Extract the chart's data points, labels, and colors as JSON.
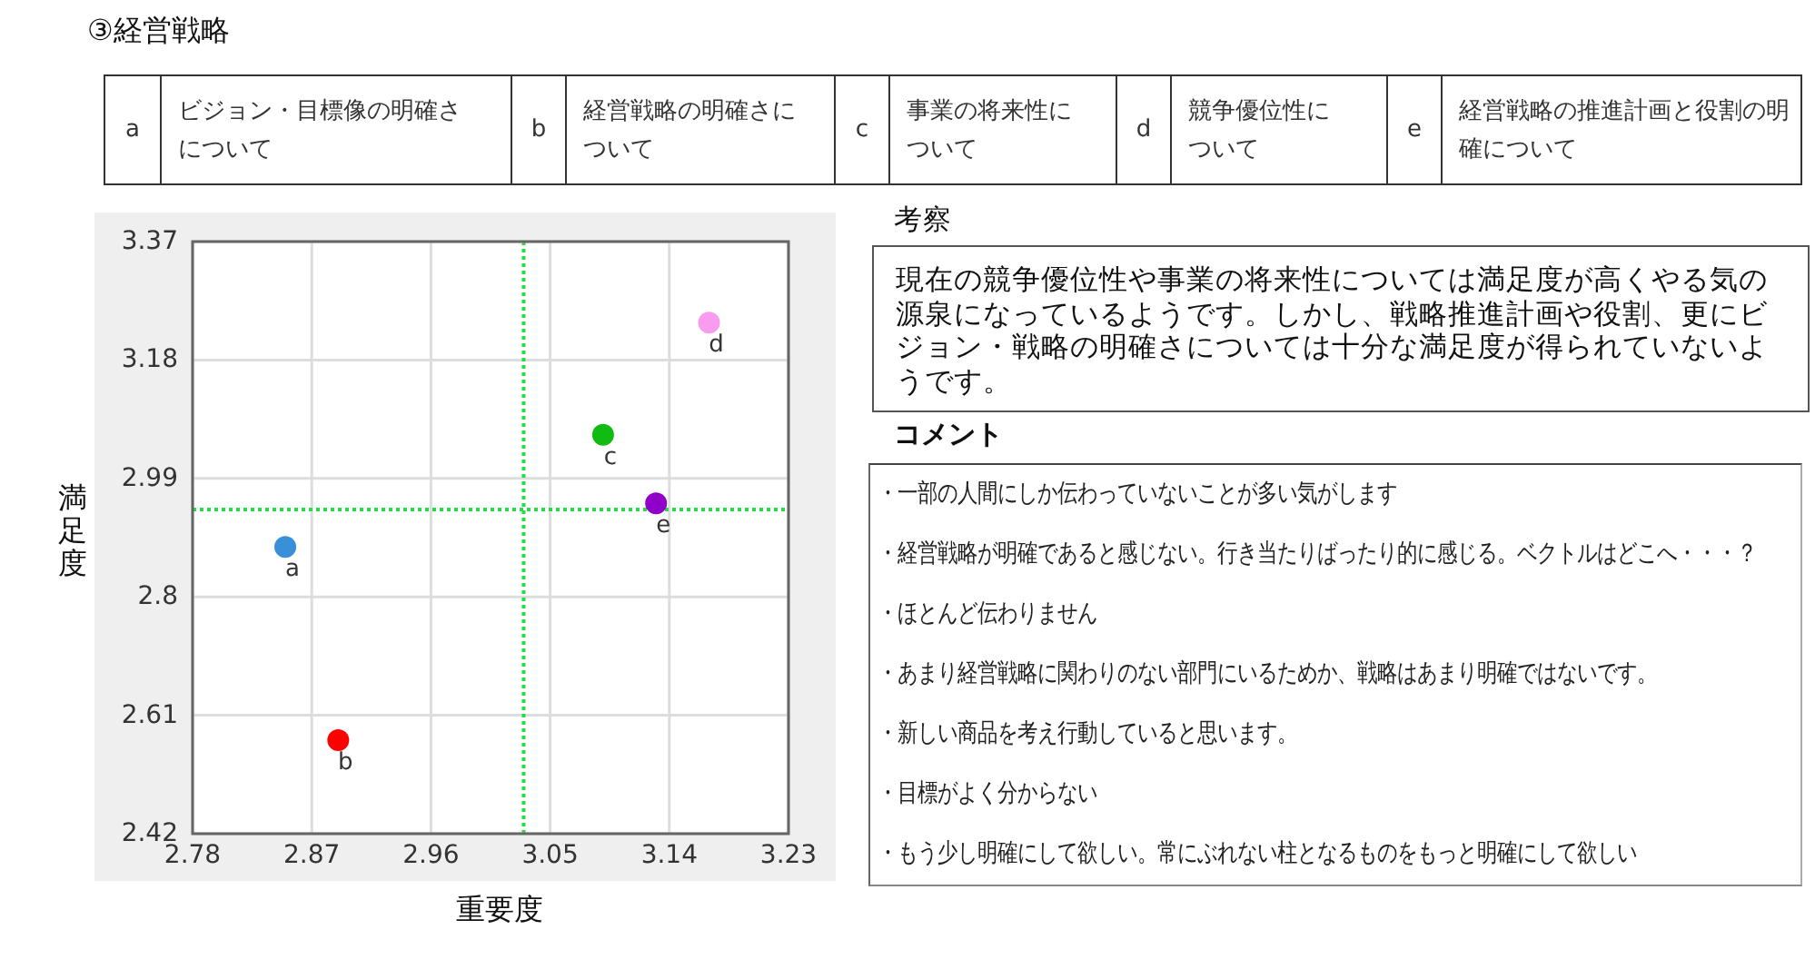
{
  "chart_data": [
    {
      "type": "other",
      "title": "③経営戦略",
      "annotations": [
        "a",
        "ビジョン・目標像の明確さについて",
        "b",
        "経営戦略の明確さについて",
        "c",
        "事業の将来性について",
        "d",
        "競争優位性について",
        "e",
        "経営戦略の推進計画と役割の明確について"
      ]
    },
    {
      "type": "scatter",
      "xlabel": "重要度",
      "ylabel": "満足度",
      "xlim": [
        2.78,
        3.23
      ],
      "xticks": [
        2.78,
        2.87,
        2.96,
        3.05,
        3.14,
        3.23
      ],
      "ylim": [
        2.42,
        3.37
      ],
      "yticks": [
        2.42,
        2.61,
        2.8,
        2.99,
        3.18,
        3.37
      ],
      "grid": true,
      "marker": "circle",
      "ref_lines": [
        {
          "axis": "x",
          "value": 3.03,
          "color": "#22dd44",
          "line_style": "dotted"
        },
        {
          "axis": "y",
          "value": 2.94,
          "color": "#22dd44",
          "line_style": "dotted"
        }
      ],
      "series": [
        {
          "name": "a",
          "color": "#3a90d8",
          "x": [
            2.85
          ],
          "values": [
            2.88
          ]
        },
        {
          "name": "b",
          "color": "#ff0000",
          "x": [
            2.89
          ],
          "values": [
            2.57
          ]
        },
        {
          "name": "c",
          "color": "#11bb11",
          "x": [
            3.09
          ],
          "values": [
            3.06
          ]
        },
        {
          "name": "d",
          "color": "#f99cf0",
          "x": [
            3.17
          ],
          "values": [
            3.24
          ]
        },
        {
          "name": "e",
          "color": "#9000c8",
          "x": [
            3.13
          ],
          "values": [
            2.95
          ]
        }
      ]
    },
    {
      "type": "other",
      "title": "考察",
      "annotations": [
        "現在の競争優位性や事業の将来性については満足度が高くやる気の源泉になっているようです。しかし、戦略推進計画や役割、更にビジョン・戦略の明確さについては十分な満足度が得られていないようです。"
      ]
    },
    {
      "type": "other",
      "title": "コメント",
      "annotations": [
        "・一部の人間にしか伝わっていないことが多い気がします",
        "・経営戦略が明確であると感じない。行き当たりばったり的に感じる。ベクトルはどこへ・・・？",
        "・ほとんど伝わりません",
        "・あまり経営戦略に関わりのない部門にいるためか、戦略はあまり明確ではないです。",
        "・新しい商品を考え行動していると思います。",
        "・目標がよく分からない",
        "・もう少し明確にして欲しい。常にぶれない柱となるものをもっと明確にして欲しい"
      ]
    }
  ]
}
